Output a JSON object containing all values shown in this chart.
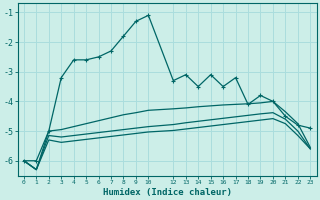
{
  "xlabel": "Humidex (Indice chaleur)",
  "bg_color": "#cceee8",
  "grid_color": "#aadddd",
  "line_color": "#006666",
  "x_values": [
    0,
    1,
    2,
    3,
    4,
    5,
    6,
    7,
    8,
    9,
    10,
    12,
    13,
    14,
    15,
    16,
    17,
    18,
    19,
    20,
    21,
    22,
    23
  ],
  "series1": [
    -6.0,
    -6.0,
    -5.0,
    -3.2,
    -2.6,
    -2.6,
    -2.5,
    -2.3,
    -1.8,
    -1.3,
    -1.1,
    -3.3,
    -3.1,
    -3.5,
    -3.1,
    -3.5,
    -3.2,
    -4.1,
    -3.8,
    -4.0,
    -4.5,
    -4.8,
    -4.9
  ],
  "series2": [
    -6.0,
    -6.3,
    -5.0,
    -4.95,
    -4.85,
    -4.75,
    -4.65,
    -4.55,
    -4.45,
    -4.38,
    -4.3,
    -4.25,
    -4.22,
    -4.18,
    -4.15,
    -4.12,
    -4.1,
    -4.08,
    -4.05,
    -4.0,
    -4.35,
    -4.75,
    -5.55
  ],
  "series3": [
    -6.0,
    -6.3,
    -5.15,
    -5.2,
    -5.15,
    -5.1,
    -5.05,
    -5.0,
    -4.95,
    -4.9,
    -4.85,
    -4.78,
    -4.72,
    -4.67,
    -4.62,
    -4.57,
    -4.52,
    -4.47,
    -4.42,
    -4.38,
    -4.6,
    -5.0,
    -5.6
  ],
  "series4": [
    -6.0,
    -6.3,
    -5.3,
    -5.38,
    -5.33,
    -5.28,
    -5.23,
    -5.18,
    -5.13,
    -5.08,
    -5.03,
    -4.98,
    -4.93,
    -4.88,
    -4.83,
    -4.78,
    -4.73,
    -4.68,
    -4.63,
    -4.58,
    -4.75,
    -5.15,
    -5.6
  ],
  "ylim": [
    -6.5,
    -0.7
  ],
  "yticks": [
    -1,
    -2,
    -3,
    -4,
    -5,
    -6
  ],
  "xlim": [
    -0.5,
    23.5
  ],
  "xtick_positions": [
    0,
    1,
    2,
    3,
    4,
    5,
    6,
    7,
    8,
    9,
    10,
    12,
    13,
    14,
    15,
    16,
    17,
    18,
    19,
    20,
    21,
    22,
    23
  ],
  "xtick_labels": [
    "0",
    "1",
    "2",
    "3",
    "4",
    "5",
    "6",
    "7",
    "8",
    "9",
    "10",
    "12",
    "13",
    "14",
    "15",
    "16",
    "17",
    "18",
    "19",
    "20",
    "21",
    "22",
    "23"
  ]
}
